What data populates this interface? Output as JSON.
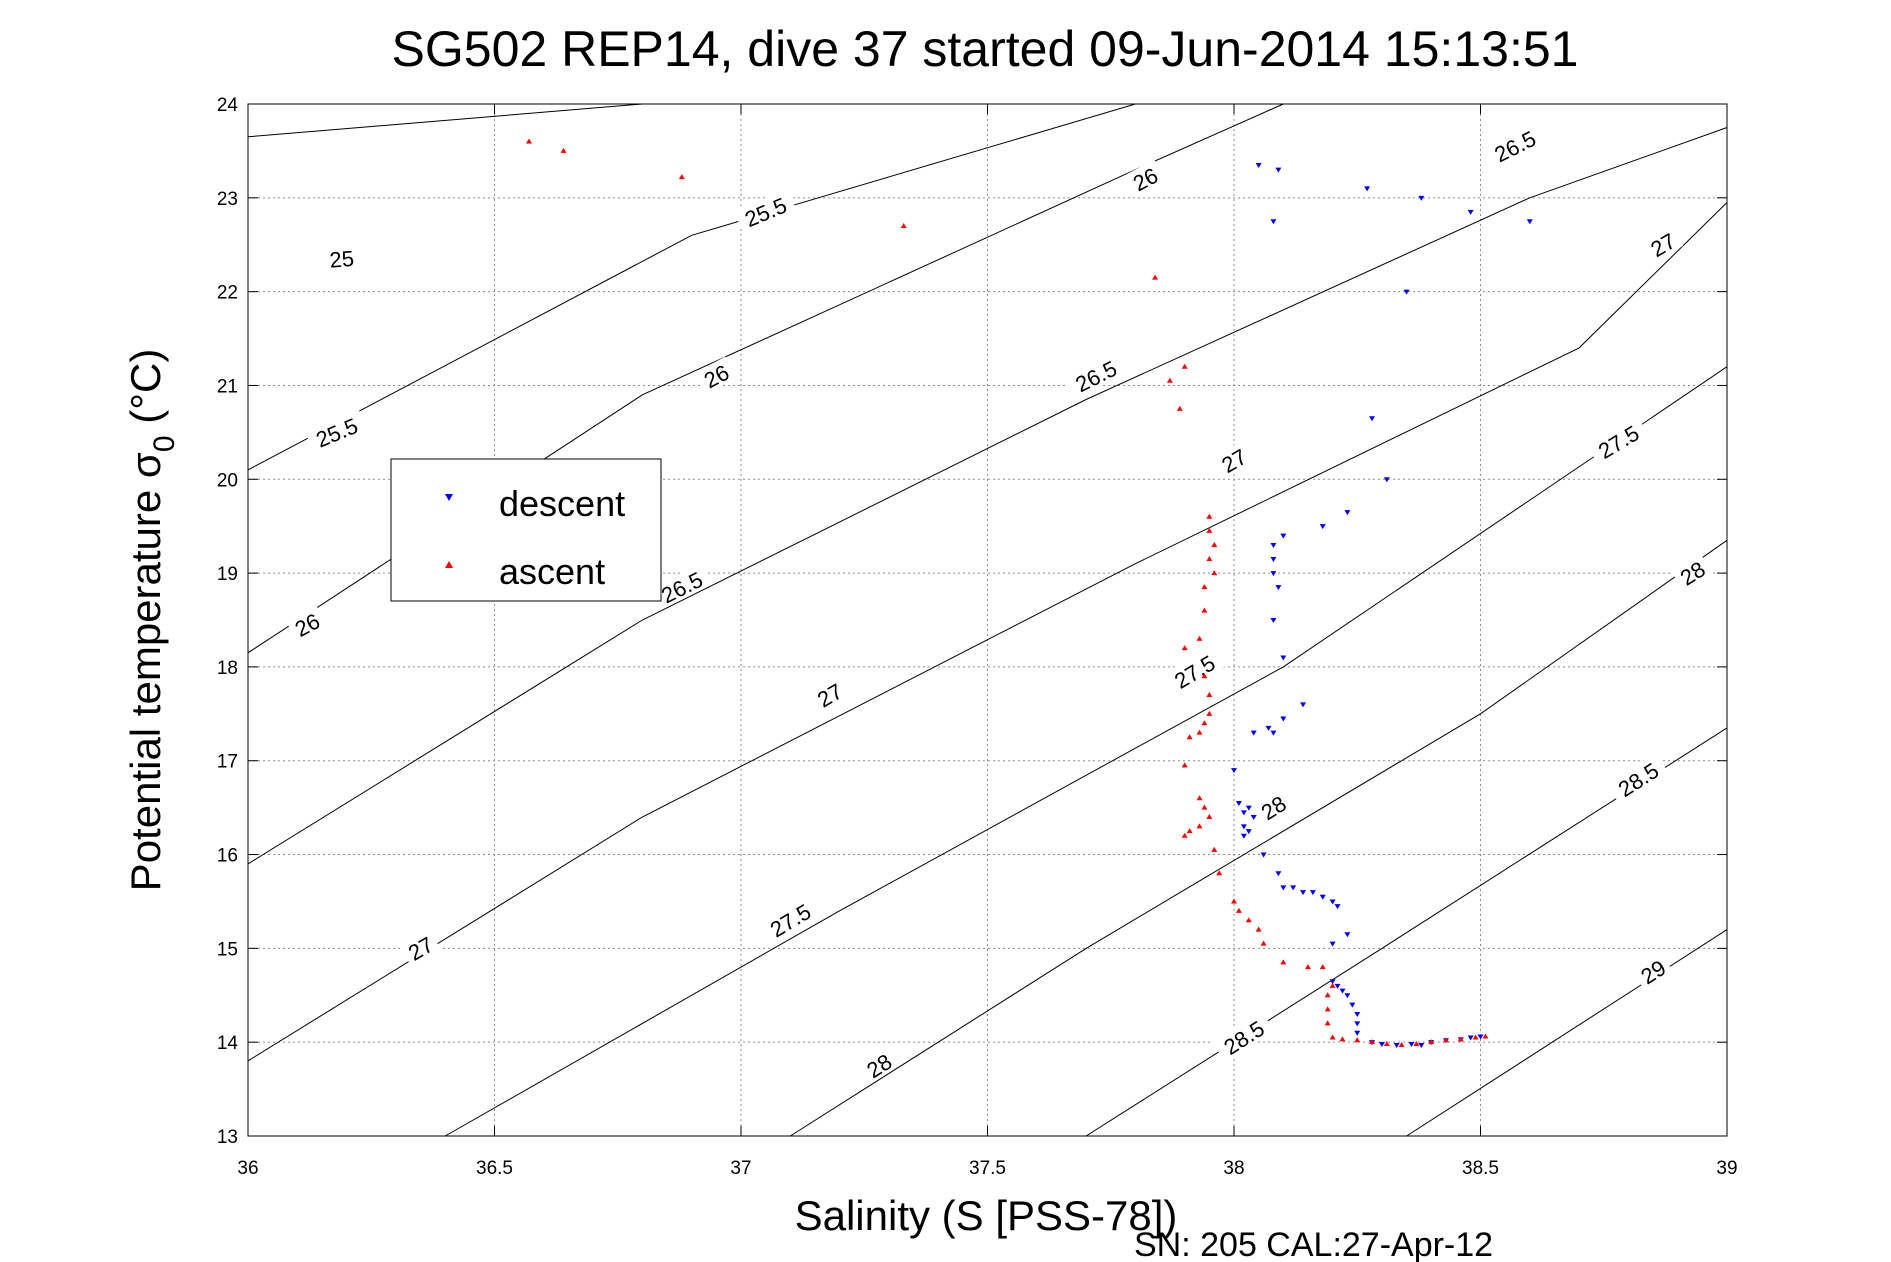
{
  "chart_data": {
    "type": "scatter",
    "title": "SG502 REP14, dive 37 started 09-Jun-2014 15:13:51",
    "xlabel": "Salinity (S [PSS-78])",
    "ylabel_main": "Potential temperature σ",
    "ylabel_sub": "0",
    "ylabel_units": "(°C)",
    "xlim": [
      36,
      39
    ],
    "ylim": [
      13,
      24
    ],
    "xticks": [
      "36",
      "36.5",
      "37",
      "37.5",
      "38",
      "38.5",
      "39"
    ],
    "yticks": [
      "13",
      "14",
      "15",
      "16",
      "17",
      "18",
      "19",
      "20",
      "21",
      "22",
      "23",
      "24"
    ],
    "grid": true,
    "footer": "SN: 205  CAL:27-Apr-12",
    "legend": {
      "placement": "left-center",
      "entries": [
        {
          "label": "descent",
          "color": "#0000ff",
          "marker": "triangle-down"
        },
        {
          "label": "ascent",
          "color": "#ff0000",
          "marker": "triangle-up"
        }
      ]
    },
    "series": [
      {
        "name": "descent",
        "color": "#0000ff",
        "points": [
          [
            38.05,
            23.35
          ],
          [
            38.09,
            23.3
          ],
          [
            38.08,
            22.75
          ],
          [
            38.27,
            23.1
          ],
          [
            38.38,
            23.0
          ],
          [
            38.48,
            22.85
          ],
          [
            38.6,
            22.75
          ],
          [
            38.35,
            22.0
          ],
          [
            38.28,
            20.65
          ],
          [
            38.31,
            20.0
          ],
          [
            38.23,
            19.65
          ],
          [
            38.18,
            19.5
          ],
          [
            38.1,
            19.4
          ],
          [
            38.08,
            19.3
          ],
          [
            38.08,
            19.15
          ],
          [
            38.08,
            19.0
          ],
          [
            38.09,
            18.85
          ],
          [
            38.08,
            18.5
          ],
          [
            38.1,
            18.1
          ],
          [
            38.14,
            17.6
          ],
          [
            38.1,
            17.45
          ],
          [
            38.07,
            17.35
          ],
          [
            38.04,
            17.3
          ],
          [
            38.08,
            17.3
          ],
          [
            38.0,
            16.9
          ],
          [
            38.01,
            16.55
          ],
          [
            38.02,
            16.45
          ],
          [
            38.03,
            16.5
          ],
          [
            38.04,
            16.4
          ],
          [
            38.02,
            16.3
          ],
          [
            38.03,
            16.25
          ],
          [
            38.02,
            16.2
          ],
          [
            38.06,
            16.0
          ],
          [
            38.09,
            15.8
          ],
          [
            38.1,
            15.65
          ],
          [
            38.12,
            15.65
          ],
          [
            38.14,
            15.6
          ],
          [
            38.16,
            15.6
          ],
          [
            38.18,
            15.55
          ],
          [
            38.2,
            15.5
          ],
          [
            38.21,
            15.45
          ],
          [
            38.23,
            15.15
          ],
          [
            38.2,
            15.05
          ],
          [
            38.2,
            14.65
          ],
          [
            38.21,
            14.6
          ],
          [
            38.22,
            14.55
          ],
          [
            38.23,
            14.5
          ],
          [
            38.24,
            14.4
          ],
          [
            38.25,
            14.3
          ],
          [
            38.25,
            14.2
          ],
          [
            38.25,
            14.1
          ],
          [
            38.28,
            14.0
          ],
          [
            38.3,
            13.98
          ],
          [
            38.33,
            13.97
          ],
          [
            38.36,
            13.98
          ],
          [
            38.38,
            13.97
          ],
          [
            38.4,
            14.0
          ],
          [
            38.43,
            14.02
          ],
          [
            38.46,
            14.03
          ],
          [
            38.48,
            14.05
          ],
          [
            38.5,
            14.06
          ]
        ]
      },
      {
        "name": "ascent",
        "color": "#ff0000",
        "points": [
          [
            36.57,
            23.6
          ],
          [
            36.64,
            23.5
          ],
          [
            36.88,
            23.22
          ],
          [
            37.33,
            22.7
          ],
          [
            37.84,
            22.15
          ],
          [
            37.9,
            21.2
          ],
          [
            37.87,
            21.05
          ],
          [
            37.89,
            20.75
          ],
          [
            37.95,
            19.6
          ],
          [
            37.95,
            19.45
          ],
          [
            37.96,
            19.3
          ],
          [
            37.95,
            19.15
          ],
          [
            37.96,
            19.0
          ],
          [
            37.94,
            18.85
          ],
          [
            37.94,
            18.6
          ],
          [
            37.93,
            18.3
          ],
          [
            37.9,
            18.2
          ],
          [
            37.94,
            17.9
          ],
          [
            37.95,
            17.7
          ],
          [
            37.95,
            17.5
          ],
          [
            37.94,
            17.4
          ],
          [
            37.93,
            17.3
          ],
          [
            37.91,
            17.25
          ],
          [
            37.9,
            16.95
          ],
          [
            37.93,
            16.6
          ],
          [
            37.94,
            16.5
          ],
          [
            37.95,
            16.4
          ],
          [
            37.93,
            16.3
          ],
          [
            37.91,
            16.25
          ],
          [
            37.9,
            16.2
          ],
          [
            37.96,
            16.05
          ],
          [
            37.97,
            15.8
          ],
          [
            38.0,
            15.5
          ],
          [
            38.01,
            15.4
          ],
          [
            38.03,
            15.3
          ],
          [
            38.05,
            15.2
          ],
          [
            38.06,
            15.05
          ],
          [
            38.1,
            14.85
          ],
          [
            38.15,
            14.8
          ],
          [
            38.18,
            14.8
          ],
          [
            38.2,
            14.6
          ],
          [
            38.19,
            14.5
          ],
          [
            38.19,
            14.35
          ],
          [
            38.19,
            14.2
          ],
          [
            38.2,
            14.05
          ],
          [
            38.22,
            14.03
          ],
          [
            38.25,
            14.02
          ],
          [
            38.28,
            14.0
          ],
          [
            38.31,
            13.98
          ],
          [
            38.34,
            13.97
          ],
          [
            38.37,
            13.98
          ],
          [
            38.4,
            14.0
          ],
          [
            38.43,
            14.02
          ],
          [
            38.46,
            14.03
          ],
          [
            38.49,
            14.05
          ],
          [
            38.51,
            14.06
          ]
        ]
      }
    ],
    "contours": [
      {
        "label": "25",
        "points": [
          [
            36.0,
            23.65
          ],
          [
            36.8,
            24.0
          ]
        ],
        "labels_at": [
          [
            36.19,
            22.35
          ]
        ]
      },
      {
        "label": "25.5",
        "points": [
          [
            36.0,
            20.1
          ],
          [
            36.9,
            22.6
          ],
          [
            37.8,
            24.0
          ]
        ],
        "labels_at": [
          [
            36.18,
            20.5
          ],
          [
            37.05,
            22.85
          ]
        ]
      },
      {
        "label": "26",
        "points": [
          [
            36.0,
            18.15
          ],
          [
            36.8,
            20.9
          ],
          [
            37.8,
            23.3
          ],
          [
            38.1,
            24.0
          ]
        ],
        "labels_at": [
          [
            36.12,
            18.45
          ],
          [
            36.95,
            21.1
          ],
          [
            37.82,
            23.2
          ]
        ]
      },
      {
        "label": "26.5",
        "points": [
          [
            36.0,
            15.9
          ],
          [
            36.8,
            18.5
          ],
          [
            37.7,
            20.85
          ],
          [
            38.6,
            23.0
          ],
          [
            39.0,
            23.75
          ]
        ],
        "labels_at": [
          [
            36.88,
            18.85
          ],
          [
            37.72,
            21.1
          ],
          [
            38.57,
            23.55
          ]
        ]
      },
      {
        "label": "27",
        "points": [
          [
            36.0,
            13.8
          ],
          [
            36.8,
            16.4
          ],
          [
            37.8,
            19.1
          ],
          [
            38.7,
            21.4
          ],
          [
            39.0,
            22.95
          ]
        ],
        "labels_at": [
          [
            36.35,
            15.0
          ],
          [
            37.18,
            17.7
          ],
          [
            38.0,
            20.2
          ],
          [
            38.87,
            22.5
          ]
        ]
      },
      {
        "label": "27.5",
        "points": [
          [
            36.4,
            13.0
          ],
          [
            37.2,
            15.4
          ],
          [
            38.1,
            18.0
          ],
          [
            39.0,
            21.2
          ]
        ],
        "labels_at": [
          [
            37.1,
            15.3
          ],
          [
            37.92,
            17.95
          ],
          [
            38.78,
            20.4
          ]
        ]
      },
      {
        "label": "28",
        "points": [
          [
            37.1,
            13.0
          ],
          [
            37.7,
            15.0
          ],
          [
            38.5,
            17.5
          ],
          [
            39.0,
            19.35
          ]
        ],
        "labels_at": [
          [
            37.28,
            13.75
          ],
          [
            38.08,
            16.5
          ],
          [
            38.93,
            19.0
          ]
        ]
      },
      {
        "label": "28.5",
        "points": [
          [
            37.7,
            13.0
          ],
          [
            38.3,
            15.0
          ],
          [
            39.0,
            17.35
          ]
        ],
        "labels_at": [
          [
            38.02,
            14.05
          ],
          [
            38.82,
            16.8
          ]
        ]
      },
      {
        "label": "29",
        "points": [
          [
            38.35,
            13.0
          ],
          [
            39.0,
            15.2
          ]
        ],
        "labels_at": [
          [
            38.85,
            14.75
          ]
        ]
      }
    ]
  }
}
